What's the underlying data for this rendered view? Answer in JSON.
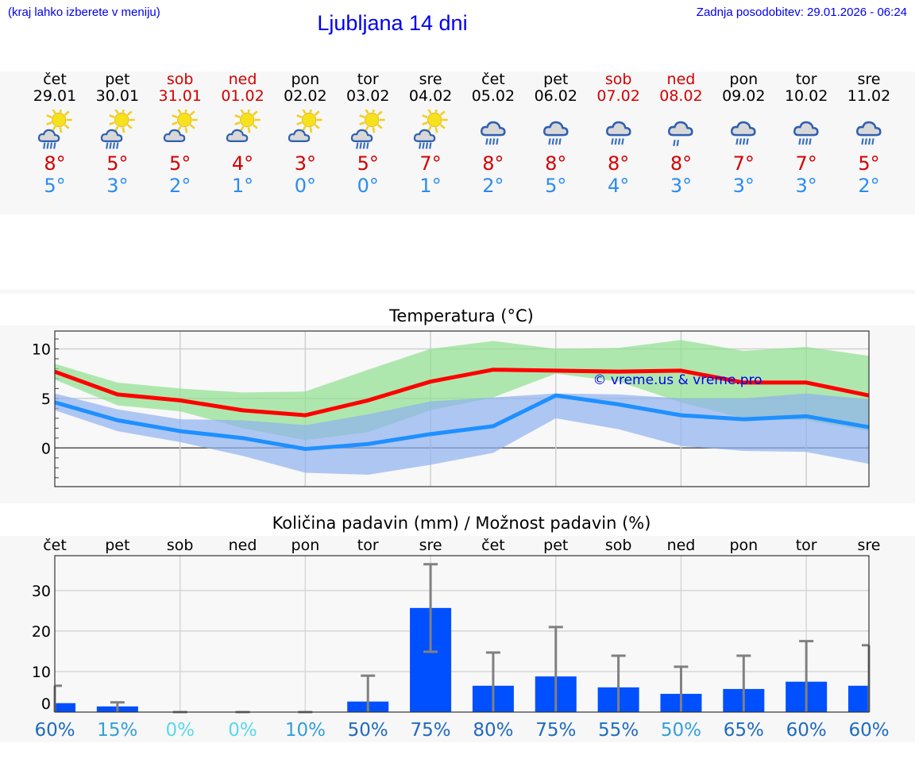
{
  "header": {
    "hint": "(kraj lahko izberete v meniju)",
    "title": "Ljubljana 14 dni",
    "updated": "Zadnja posodobitev: 29.01.2026 - 06:24"
  },
  "colors": {
    "weekend": "#d40000",
    "max": "#d40000",
    "min": "#2a8cf0",
    "link": "#0000ee",
    "bar": "#0050ff",
    "errorbar": "#808080"
  },
  "days": [
    {
      "name": "čet",
      "date": "29.01",
      "weekend": false,
      "icon": "sun-cloud-rain-icon",
      "max": "8°",
      "min": "5°"
    },
    {
      "name": "pet",
      "date": "30.01",
      "weekend": false,
      "icon": "sun-cloud-rain-icon",
      "max": "5°",
      "min": "3°"
    },
    {
      "name": "sob",
      "date": "31.01",
      "weekend": true,
      "icon": "sun-cloud-icon",
      "max": "5°",
      "min": "2°"
    },
    {
      "name": "ned",
      "date": "01.02",
      "weekend": true,
      "icon": "sun-cloud-icon",
      "max": "4°",
      "min": "1°"
    },
    {
      "name": "pon",
      "date": "02.02",
      "weekend": false,
      "icon": "sun-cloud-icon",
      "max": "3°",
      "min": "0°"
    },
    {
      "name": "tor",
      "date": "03.02",
      "weekend": false,
      "icon": "sun-cloud-rain-icon",
      "max": "5°",
      "min": "0°"
    },
    {
      "name": "sre",
      "date": "04.02",
      "weekend": false,
      "icon": "sun-cloud-heavy-rain-icon",
      "max": "7°",
      "min": "1°"
    },
    {
      "name": "čet",
      "date": "05.02",
      "weekend": false,
      "icon": "cloud-rain-icon",
      "max": "8°",
      "min": "2°"
    },
    {
      "name": "pet",
      "date": "06.02",
      "weekend": false,
      "icon": "cloud-rain-icon",
      "max": "8°",
      "min": "5°"
    },
    {
      "name": "sob",
      "date": "07.02",
      "weekend": true,
      "icon": "cloud-rain-icon",
      "max": "8°",
      "min": "4°"
    },
    {
      "name": "ned",
      "date": "08.02",
      "weekend": true,
      "icon": "cloud-light-rain-icon",
      "max": "8°",
      "min": "3°"
    },
    {
      "name": "pon",
      "date": "09.02",
      "weekend": false,
      "icon": "cloud-rain-icon",
      "max": "7°",
      "min": "3°"
    },
    {
      "name": "tor",
      "date": "10.02",
      "weekend": false,
      "icon": "cloud-rain-icon",
      "max": "7°",
      "min": "3°"
    },
    {
      "name": "sre",
      "date": "11.02",
      "weekend": false,
      "icon": "cloud-rain-icon",
      "max": "5°",
      "min": "2°"
    }
  ],
  "chart_data": [
    {
      "type": "line",
      "title": "Temperatura (°C)",
      "watermark": "© vreme.us & vreme.pro",
      "x": [
        "29.01",
        "30.01",
        "31.01",
        "01.02",
        "02.02",
        "03.02",
        "04.02",
        "05.02",
        "06.02",
        "07.02",
        "08.02",
        "09.02",
        "10.02",
        "11.02"
      ],
      "ylim": [
        -3.9,
        11.8
      ],
      "yticks": [
        0,
        5,
        10
      ],
      "grid": true,
      "series": [
        {
          "role": "max",
          "color": "#ff0000",
          "values": [
            7.7,
            5.4,
            4.8,
            3.8,
            3.3,
            4.8,
            6.7,
            7.9,
            7.8,
            7.7,
            7.8,
            6.6,
            6.6,
            5.3
          ]
        },
        {
          "role": "min",
          "color": "#1e90ff",
          "values": [
            4.6,
            2.8,
            1.7,
            1.0,
            -0.1,
            0.4,
            1.4,
            2.2,
            5.3,
            4.4,
            3.3,
            2.9,
            3.2,
            2.1
          ]
        }
      ],
      "bands": [
        {
          "role": "max-range",
          "color": "#8fe08f",
          "upper": [
            8.5,
            6.6,
            6.0,
            5.6,
            5.7,
            7.9,
            10.0,
            10.8,
            10.0,
            10.1,
            10.9,
            9.8,
            10.2,
            9.3
          ],
          "lower": [
            6.9,
            4.3,
            3.7,
            2.0,
            0.8,
            1.6,
            3.8,
            5.1,
            7.5,
            6.7,
            4.6,
            3.0,
            2.8,
            1.7
          ]
        },
        {
          "role": "min-range",
          "color": "#8fb0f0",
          "upper": [
            5.5,
            3.9,
            2.9,
            2.8,
            2.3,
            3.4,
            4.7,
            5.1,
            5.5,
            5.4,
            5.0,
            5.0,
            5.5,
            4.9
          ],
          "lower": [
            3.8,
            1.7,
            0.6,
            -0.8,
            -2.5,
            -2.7,
            -1.7,
            -0.5,
            3.0,
            1.9,
            0.2,
            -0.3,
            -0.4,
            -1.6
          ]
        }
      ]
    },
    {
      "type": "bar",
      "title": "Količina padavin (mm) / Možnost padavin (%)",
      "categories": [
        "čet",
        "pet",
        "sob",
        "ned",
        "pon",
        "tor",
        "sre",
        "čet",
        "pet",
        "sob",
        "ned",
        "pon",
        "tor",
        "sre"
      ],
      "ylim": [
        0,
        38.6
      ],
      "yticks": [
        0,
        10,
        20,
        30
      ],
      "grid": true,
      "values": [
        2.2,
        1.4,
        0,
        0,
        0,
        2.6,
        25.7,
        6.5,
        8.8,
        6.1,
        4.5,
        5.7,
        7.5,
        6.5
      ],
      "error_low": [
        0,
        0,
        0,
        0,
        0,
        0,
        14.9,
        0,
        0,
        0,
        0,
        0,
        0,
        0
      ],
      "error_high": [
        6.5,
        2.4,
        0,
        0,
        0,
        9.0,
        36.5,
        14.7,
        21.0,
        13.9,
        11.2,
        13.9,
        17.5,
        16.5
      ],
      "probability": [
        "60%",
        "15%",
        "0%",
        "0%",
        "10%",
        "50%",
        "75%",
        "80%",
        "75%",
        "55%",
        "50%",
        "65%",
        "60%",
        "60%"
      ],
      "probability_colors": [
        "#1f6bbf",
        "#33a0d8",
        "#5ad8ee",
        "#5ad8ee",
        "#33a0d8",
        "#1f6bbf",
        "#1f6bbf",
        "#1f6bbf",
        "#1f6bbf",
        "#1f6bbf",
        "#33a0d8",
        "#1f6bbf",
        "#1f6bbf",
        "#1f6bbf"
      ]
    }
  ]
}
